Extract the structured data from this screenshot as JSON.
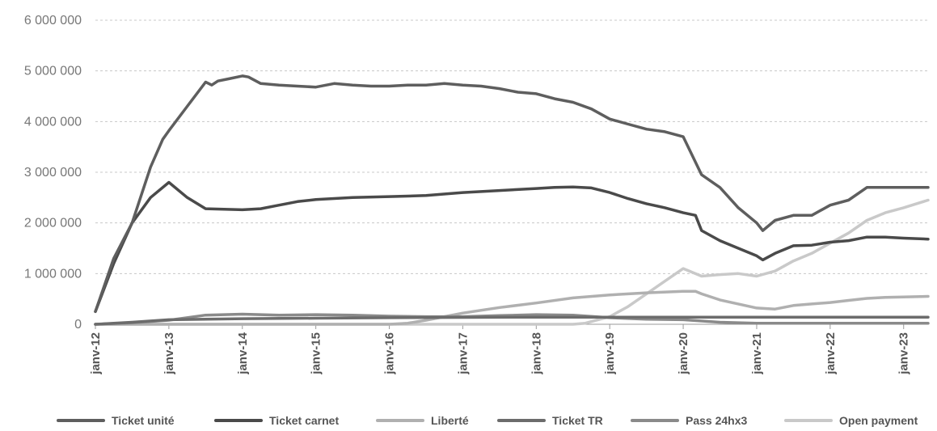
{
  "chart_data": {
    "type": "line",
    "title": "",
    "xlabel": "",
    "ylabel": "",
    "ylim": [
      0,
      6000000
    ],
    "yticks": [
      0,
      1000000,
      2000000,
      3000000,
      4000000,
      5000000,
      6000000
    ],
    "ytick_labels": [
      "0",
      "1 000 000",
      "2 000 000",
      "3 000 000",
      "4 000 000",
      "5 000 000",
      "6 000 000"
    ],
    "xlim": [
      2012.0,
      2023.333
    ],
    "xticks": [
      2012,
      2013,
      2014,
      2015,
      2016,
      2017,
      2018,
      2019,
      2020,
      2021,
      2022,
      2023
    ],
    "xtick_labels": [
      "janv-12",
      "janv-13",
      "janv-14",
      "janv-15",
      "janv-16",
      "janv-17",
      "janv-18",
      "janv-19",
      "janv-20",
      "janv-21",
      "janv-22",
      "janv-23"
    ],
    "grid": true,
    "legend_position": "bottom",
    "series": [
      {
        "name": "Ticket unité",
        "color": "#5e5e5e",
        "x": [
          2012.0,
          2012.25,
          2012.5,
          2012.75,
          2012.917,
          2013.0,
          2013.25,
          2013.5,
          2013.583,
          2013.667,
          2013.833,
          2014.0,
          2014.083,
          2014.25,
          2014.5,
          2014.75,
          2015.0,
          2015.25,
          2015.5,
          2015.75,
          2016.0,
          2016.25,
          2016.5,
          2016.75,
          2017.0,
          2017.25,
          2017.5,
          2017.75,
          2018.0,
          2018.25,
          2018.5,
          2018.75,
          2019.0,
          2019.25,
          2019.5,
          2019.75,
          2020.0,
          2020.25,
          2020.5,
          2020.75,
          2021.0,
          2021.083,
          2021.25,
          2021.5,
          2021.75,
          2022.0,
          2022.25,
          2022.5,
          2022.75,
          2023.0,
          2023.333
        ],
        "values": [
          250000,
          1300000,
          2000000,
          3100000,
          3650000,
          3820000,
          4300000,
          4780000,
          4720000,
          4800000,
          4850000,
          4900000,
          4880000,
          4750000,
          4720000,
          4700000,
          4680000,
          4750000,
          4720000,
          4700000,
          4700000,
          4720000,
          4720000,
          4750000,
          4720000,
          4700000,
          4650000,
          4580000,
          4550000,
          4450000,
          4380000,
          4250000,
          4050000,
          3950000,
          3850000,
          3800000,
          3700000,
          2950000,
          2700000,
          2300000,
          2000000,
          1850000,
          2050000,
          2150000,
          2150000,
          2350000,
          2450000,
          2700000,
          2700000,
          2700000,
          2700000
        ]
      },
      {
        "name": "Ticket carnet",
        "color": "#4a4a4a",
        "x": [
          2012.0,
          2012.25,
          2012.5,
          2012.75,
          2013.0,
          2013.25,
          2013.5,
          2013.75,
          2014.0,
          2014.25,
          2014.5,
          2014.75,
          2015.0,
          2015.5,
          2016.0,
          2016.5,
          2017.0,
          2017.5,
          2018.0,
          2018.25,
          2018.5,
          2018.75,
          2019.0,
          2019.25,
          2019.5,
          2019.75,
          2020.0,
          2020.167,
          2020.25,
          2020.5,
          2020.75,
          2021.0,
          2021.083,
          2021.25,
          2021.5,
          2021.75,
          2022.0,
          2022.25,
          2022.5,
          2022.75,
          2023.0,
          2023.333
        ],
        "values": [
          250000,
          1200000,
          2000000,
          2500000,
          2800000,
          2500000,
          2280000,
          2270000,
          2260000,
          2280000,
          2350000,
          2420000,
          2460000,
          2500000,
          2520000,
          2540000,
          2600000,
          2640000,
          2680000,
          2700000,
          2710000,
          2690000,
          2600000,
          2480000,
          2380000,
          2300000,
          2200000,
          2150000,
          1850000,
          1650000,
          1500000,
          1350000,
          1270000,
          1400000,
          1550000,
          1560000,
          1620000,
          1650000,
          1720000,
          1720000,
          1700000,
          1680000
        ]
      },
      {
        "name": "Liberté",
        "color": "#b0b0b0",
        "x": [
          2012.0,
          2012.5,
          2013.0,
          2013.5,
          2014.0,
          2015.0,
          2016.0,
          2016.25,
          2016.5,
          2016.75,
          2017.0,
          2017.5,
          2018.0,
          2018.5,
          2019.0,
          2019.5,
          2020.0,
          2020.167,
          2020.25,
          2020.5,
          2020.75,
          2021.0,
          2021.25,
          2021.5,
          2021.75,
          2022.0,
          2022.25,
          2022.5,
          2022.75,
          2023.0,
          2023.333
        ],
        "values": [
          0,
          0,
          0,
          0,
          0,
          0,
          0,
          20000,
          80000,
          150000,
          220000,
          330000,
          420000,
          520000,
          580000,
          620000,
          650000,
          650000,
          600000,
          480000,
          400000,
          320000,
          300000,
          370000,
          400000,
          430000,
          470000,
          510000,
          530000,
          540000,
          550000
        ]
      },
      {
        "name": "Ticket TR",
        "color": "#6c6c6c",
        "x": [
          2012.0,
          2012.5,
          2013.0,
          2014.0,
          2015.0,
          2016.0,
          2017.0,
          2018.0,
          2019.0,
          2020.0,
          2021.0,
          2022.0,
          2023.0,
          2023.333
        ],
        "values": [
          0,
          40000,
          90000,
          110000,
          120000,
          130000,
          135000,
          140000,
          140000,
          140000,
          140000,
          140000,
          140000,
          140000
        ]
      },
      {
        "name": "Pass 24hx3",
        "color": "#8a8a8a",
        "x": [
          2012.0,
          2012.5,
          2013.0,
          2013.5,
          2014.0,
          2014.5,
          2015.0,
          2015.5,
          2016.0,
          2016.5,
          2017.0,
          2017.5,
          2018.0,
          2018.5,
          2019.0,
          2019.5,
          2020.0,
          2020.5,
          2021.0,
          2021.5,
          2022.0,
          2022.5,
          2023.0,
          2023.333
        ],
        "values": [
          0,
          30000,
          80000,
          180000,
          200000,
          180000,
          190000,
          180000,
          160000,
          150000,
          150000,
          170000,
          190000,
          180000,
          130000,
          100000,
          90000,
          40000,
          20000,
          20000,
          20000,
          20000,
          20000,
          20000
        ]
      },
      {
        "name": "Open payment",
        "color": "#c9c9c9",
        "x": [
          2012.0,
          2013.0,
          2014.0,
          2015.0,
          2016.0,
          2017.0,
          2018.0,
          2018.5,
          2018.667,
          2019.0,
          2019.25,
          2019.5,
          2019.75,
          2020.0,
          2020.25,
          2020.5,
          2020.75,
          2021.0,
          2021.25,
          2021.5,
          2021.75,
          2022.0,
          2022.25,
          2022.5,
          2022.75,
          2023.0,
          2023.333
        ],
        "values": [
          0,
          0,
          0,
          0,
          0,
          0,
          0,
          0,
          20000,
          150000,
          350000,
          600000,
          850000,
          1100000,
          950000,
          980000,
          1000000,
          950000,
          1050000,
          1250000,
          1400000,
          1600000,
          1800000,
          2050000,
          2200000,
          2300000,
          2450000
        ]
      }
    ]
  }
}
